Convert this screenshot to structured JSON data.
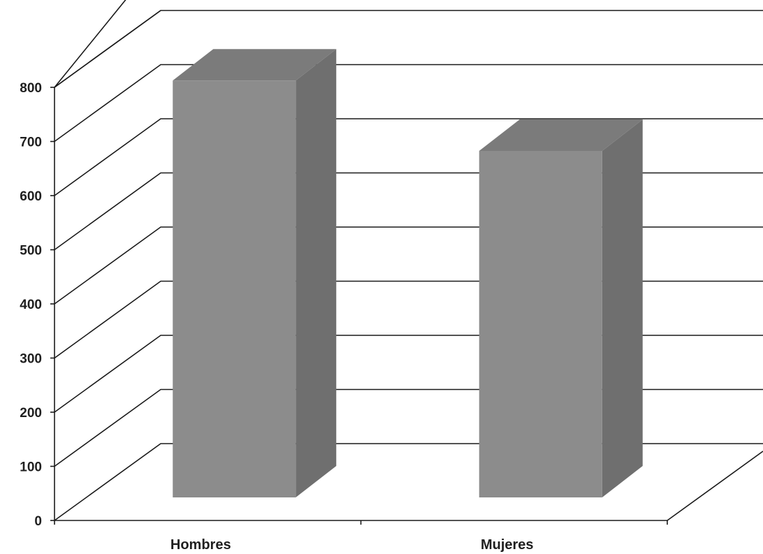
{
  "chart_data": {
    "type": "bar",
    "style": "3d-column",
    "categories": [
      "Hombres",
      "Mujeres"
    ],
    "values": [
      770,
      640
    ],
    "title": "",
    "xlabel": "",
    "ylabel": "",
    "ylim": [
      0,
      800
    ],
    "yticks": [
      "0",
      "100",
      "200",
      "300",
      "400",
      "500",
      "600",
      "700",
      "800"
    ],
    "grid": true,
    "legend": "none",
    "colors": {
      "bar_front": "#8c8c8c",
      "bar_side": "#6f6f6f",
      "bar_top": "#7b7b7b",
      "grid": "#1a1a1a",
      "background": "#ffffff"
    }
  }
}
